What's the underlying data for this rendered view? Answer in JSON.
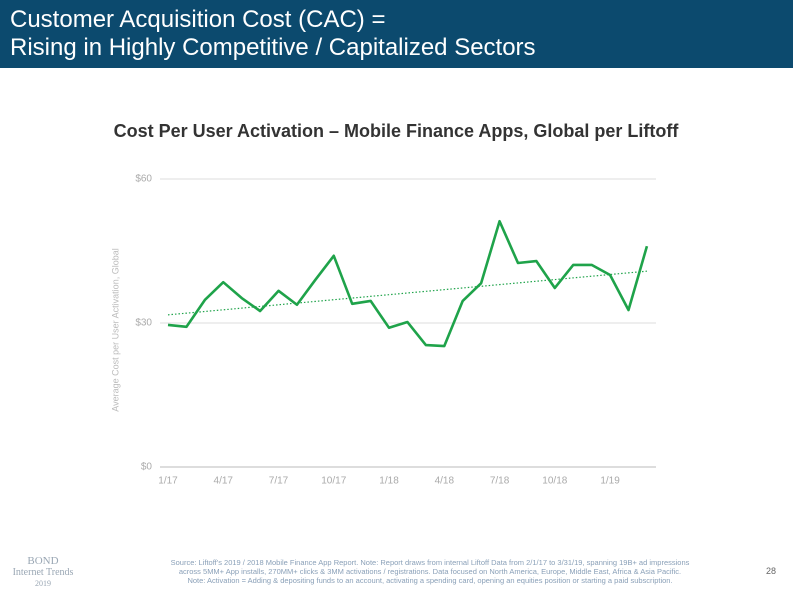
{
  "header": {
    "title_lines": [
      "Customer Acquisition Cost (CAC) =",
      "Rising in Highly Competitive / Capitalized Sectors"
    ]
  },
  "chart_data": {
    "type": "line",
    "title": "Cost Per User Activation – Mobile Finance Apps, Global per Liftoff",
    "y_label": "Average Cost per User Activation, Global",
    "categories": [
      "1/17",
      null,
      null,
      "4/17",
      null,
      null,
      "7/17",
      null,
      null,
      "10/17",
      null,
      null,
      "1/18",
      null,
      null,
      "4/18",
      null,
      null,
      "7/18",
      null,
      null,
      "10/18",
      null,
      null,
      "1/19",
      null,
      null
    ],
    "series": [
      {
        "color": "#1fa34a",
        "values": [
          29.6,
          29.2,
          34.8,
          38.5,
          35.2,
          32.5,
          36.7,
          33.8,
          39,
          44,
          34,
          34.6,
          29,
          30.2,
          25.4,
          25.2,
          34.6,
          38.3,
          51.2,
          42.5,
          42.9,
          37.3,
          42.1,
          42.1,
          40,
          32.7,
          46
        ]
      }
    ],
    "trend": {
      "color": "#1fa34a",
      "start": 31.7,
      "end": 40.8
    },
    "ylim": [
      0,
      60
    ],
    "yticks": [
      {
        "value": 0,
        "label": "$0"
      },
      {
        "value": 30,
        "label": "$30"
      },
      {
        "value": 60,
        "label": "$60"
      }
    ],
    "grid": true
  },
  "footer": {
    "source_lines": [
      "Source: Liftoff's 2019 / 2018 Mobile Finance App Report.  Note: Report draws from internal Liftoff Data from 2/1/17 to 3/31/19, spanning 19B+ ad impressions",
      "across 5MM+ App installs, 270MM+ clicks & 3MM activations / registrations.  Data focused on North America, Europe, Middle East, Africa & Asia Pacific.",
      "Note: Activation = Adding & depositing funds to an account, activating a spending card, opening an equities position or starting a paid subscription."
    ],
    "brand": [
      "BOND",
      "Internet Trends",
      "2019"
    ],
    "page": "28"
  }
}
